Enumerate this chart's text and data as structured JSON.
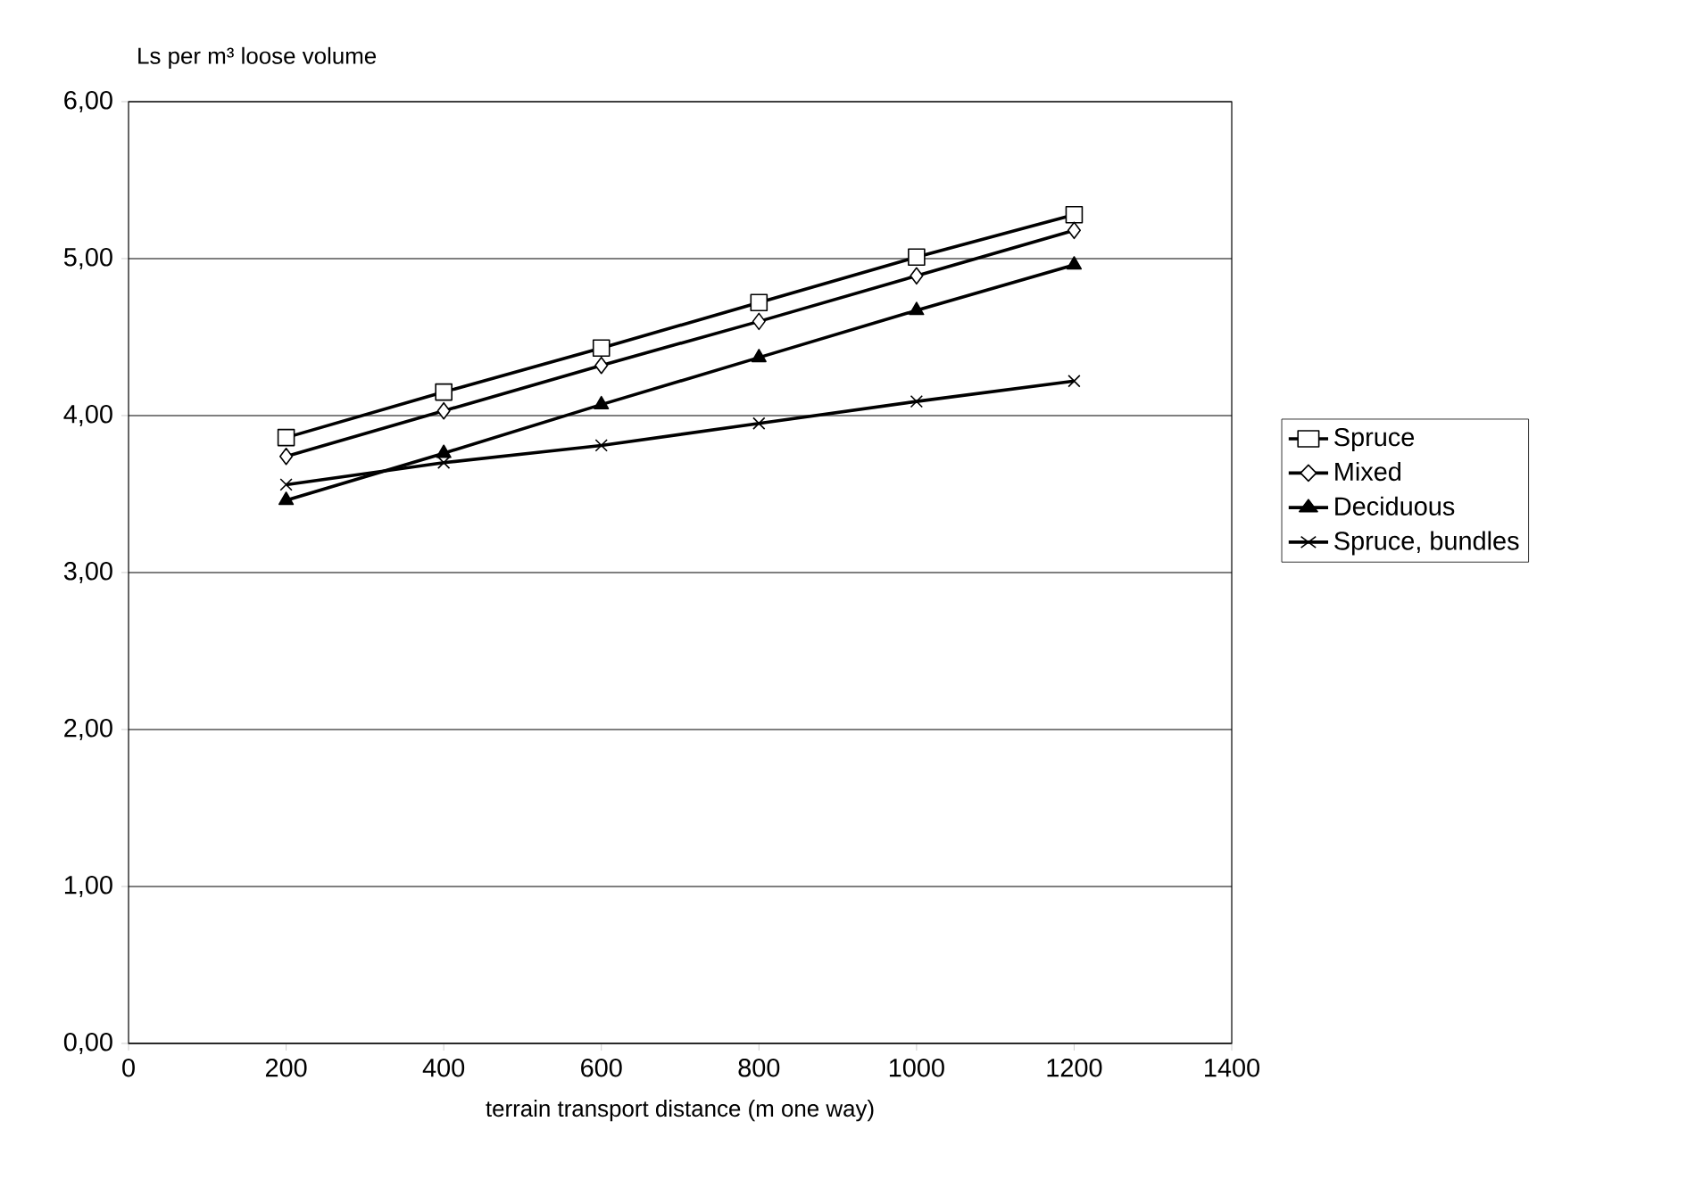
{
  "chart_data": {
    "type": "line",
    "xlabel": "terrain transport distance (m one way)",
    "ylabel": "Ls per m³ loose volume",
    "x": [
      200,
      400,
      600,
      800,
      1000,
      1200
    ],
    "series": [
      {
        "name": "Spruce",
        "color": "#000000",
        "marker": "square",
        "values": [
          3.86,
          4.15,
          4.43,
          4.72,
          5.01,
          5.28
        ]
      },
      {
        "name": "Mixed",
        "color": "#000000",
        "marker": "diamond",
        "values": [
          3.74,
          4.03,
          4.32,
          4.6,
          4.89,
          5.18
        ]
      },
      {
        "name": "Deciduous",
        "color": "#000000",
        "marker": "triangle",
        "values": [
          3.46,
          3.76,
          4.07,
          4.37,
          4.67,
          4.96
        ]
      },
      {
        "name": "Spruce, bundles",
        "color": "#000000",
        "marker": "cross",
        "values": [
          3.56,
          3.7,
          3.81,
          3.95,
          4.09,
          4.22
        ]
      }
    ],
    "xlim": [
      0,
      1400
    ],
    "xticks": [
      0,
      200,
      400,
      600,
      800,
      1000,
      1200,
      1400
    ],
    "ylim": [
      0,
      6
    ],
    "yticks": [
      {
        "value": 0,
        "label": "0,00"
      },
      {
        "value": 1,
        "label": "1,00"
      },
      {
        "value": 2,
        "label": "2,00"
      },
      {
        "value": 3,
        "label": "3,00"
      },
      {
        "value": 4,
        "label": "4,00"
      },
      {
        "value": 5,
        "label": "5,00"
      },
      {
        "value": 6,
        "label": "6,00"
      }
    ],
    "grid": "y",
    "legend": "right",
    "line_style": "solid"
  }
}
